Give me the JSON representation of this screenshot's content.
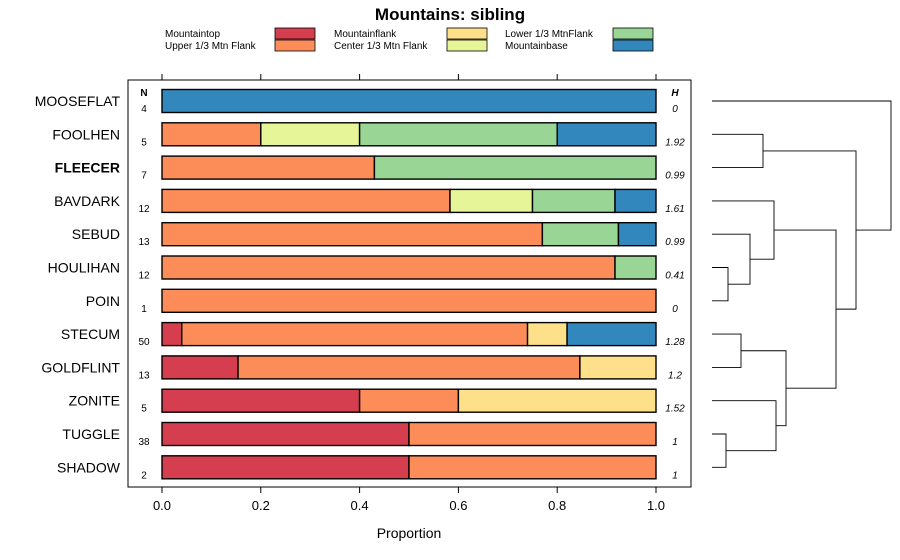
{
  "chart_data": {
    "type": "bar",
    "subtype": "stacked-horizontal-proportion",
    "title": "Mountains: sibling",
    "xlabel": "Proportion",
    "xlim": [
      0,
      1
    ],
    "xticks": [
      "0.0",
      "0.2",
      "0.4",
      "0.6",
      "0.8",
      "1.0"
    ],
    "n_header": "N",
    "h_header": "H",
    "legend": [
      {
        "name": "Mountaintop",
        "color": "#d53e4f"
      },
      {
        "name": "Upper 1/3 Mtn Flank",
        "color": "#fc8d59"
      },
      {
        "name": "Mountainflank",
        "color": "#fee08b"
      },
      {
        "name": "Center 1/3 Mtn Flank",
        "color": "#e6f598"
      },
      {
        "name": "Lower 1/3 MtnFlank",
        "color": "#99d594"
      },
      {
        "name": "Mountainbase",
        "color": "#3288bd"
      }
    ],
    "rows": [
      {
        "label": "MOOSEFLAT",
        "bold": false,
        "n": "4",
        "h": "0",
        "values": [
          0,
          0,
          0,
          0,
          0,
          1.0
        ]
      },
      {
        "label": "FOOLHEN",
        "bold": false,
        "n": "5",
        "h": "1.92",
        "values": [
          0,
          0.2,
          0,
          0.2,
          0.4,
          0.2
        ]
      },
      {
        "label": "FLEECER",
        "bold": true,
        "n": "7",
        "h": "0.99",
        "values": [
          0,
          0.43,
          0,
          0,
          0.57,
          0
        ]
      },
      {
        "label": "BAVDARK",
        "bold": false,
        "n": "12",
        "h": "1.61",
        "values": [
          0,
          0.583,
          0,
          0.167,
          0.167,
          0.083
        ]
      },
      {
        "label": "SEBUD",
        "bold": false,
        "n": "13",
        "h": "0.99",
        "values": [
          0,
          0.77,
          0,
          0,
          0.154,
          0.076
        ]
      },
      {
        "label": "HOULIHAN",
        "bold": false,
        "n": "12",
        "h": "0.41",
        "values": [
          0,
          0.917,
          0,
          0,
          0.083,
          0
        ]
      },
      {
        "label": "POIN",
        "bold": false,
        "n": "1",
        "h": "0",
        "values": [
          0,
          1.0,
          0,
          0,
          0,
          0
        ]
      },
      {
        "label": "STECUM",
        "bold": false,
        "n": "50",
        "h": "1.28",
        "values": [
          0.04,
          0.7,
          0.08,
          0,
          0,
          0.18
        ]
      },
      {
        "label": "GOLDFLINT",
        "bold": false,
        "n": "13",
        "h": "1.2",
        "values": [
          0.154,
          0.692,
          0.154,
          0,
          0,
          0
        ]
      },
      {
        "label": "ZONITE",
        "bold": false,
        "n": "5",
        "h": "1.52",
        "values": [
          0.4,
          0.2,
          0.4,
          0,
          0,
          0
        ]
      },
      {
        "label": "TUGGLE",
        "bold": false,
        "n": "38",
        "h": "1",
        "values": [
          0.5,
          0.5,
          0,
          0,
          0,
          0
        ]
      },
      {
        "label": "SHADOW",
        "bold": false,
        "n": "2",
        "h": "1",
        "values": [
          0.5,
          0.5,
          0,
          0,
          0,
          0
        ]
      }
    ],
    "dendrogram_merge_order": [
      [
        "TUGGLE",
        "SHADOW"
      ],
      [
        "ZONITE",
        "TUGGLE-SHADOW"
      ],
      [
        "STECUM",
        "GOLDFLINT"
      ],
      [
        "HOULIHAN",
        "POIN"
      ],
      [
        "SEBUD",
        "HOULIHAN-POIN"
      ],
      [
        "BAVDARK",
        "SEBUD-HOULIHAN-POIN"
      ],
      [
        "FOOLHEN",
        "FLEECER"
      ]
    ]
  }
}
